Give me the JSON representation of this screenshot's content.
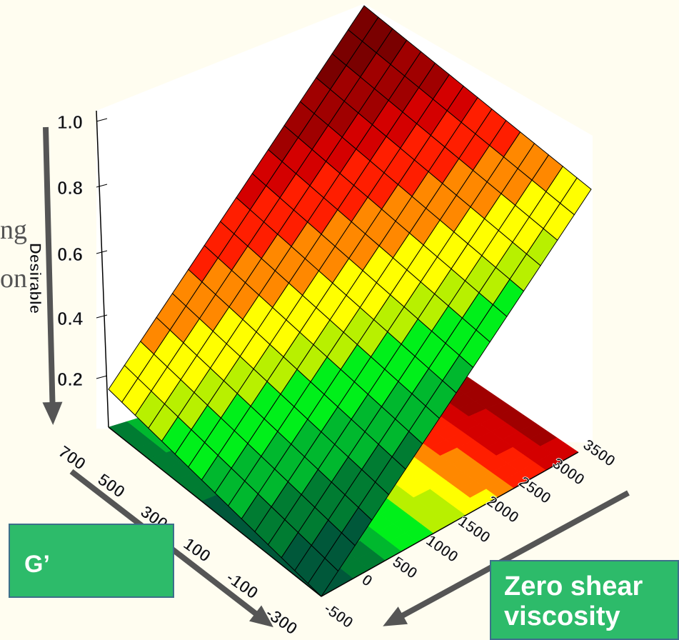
{
  "chart_data": {
    "type": "surface",
    "title": "",
    "zlabel": "Desirable",
    "z_ticks": [
      "0.2",
      "0.4",
      "0.6",
      "0.8",
      "1.0"
    ],
    "g_prime_ticks": [
      "700",
      "500",
      "300",
      "100",
      "-100",
      "-300"
    ],
    "zero_shear_ticks": [
      "-500",
      "0",
      "500",
      "1000",
      "1500",
      "2000",
      "2500",
      "3000",
      "3500"
    ],
    "color_scale": [
      "#00583a",
      "#007c32",
      "#00b82e",
      "#00f01a",
      "#b8f000",
      "#ffff00",
      "#ff8800",
      "#ff1e00",
      "#d40000",
      "#a00000",
      "#7a0000"
    ],
    "surface": {
      "z_min": 0.1,
      "z_max": 1.0,
      "description_values": "desirability increases toward high zero shear viscosity and high G′"
    }
  },
  "annotations": {
    "g_prime_label": "G’",
    "zero_shear_line1": "Zero shear",
    "zero_shear_line2": "viscosity",
    "partial_line1": "ng",
    "partial_line2": "on"
  },
  "colors": {
    "background": "#fffdf0",
    "box_fill": "#2dbb6a",
    "box_border": "#3d6f8a",
    "arrow": "#555555"
  }
}
